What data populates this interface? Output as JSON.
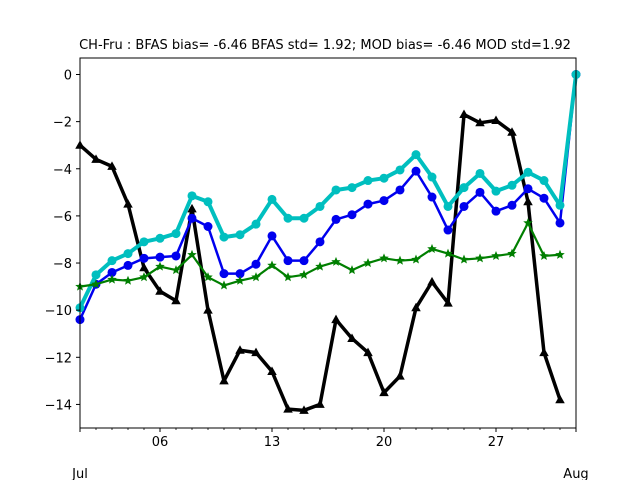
{
  "chart_data": {
    "type": "line",
    "title": "CH-Fru   : BFAS bias= -6.46 BFAS std= 1.92; MOD bias= -6.46 MOD std=1.92",
    "xlabel": "",
    "ylabel": "",
    "x_start_day": 1,
    "x_end_day": 32,
    "ylim": [
      -15,
      0.7
    ],
    "yticks": [
      0,
      -2,
      -4,
      -6,
      -8,
      -10,
      -12,
      -14
    ],
    "ytick_labels": [
      "0",
      "−2",
      "−4",
      "−6",
      "−8",
      "−10",
      "−12",
      "−14"
    ],
    "xticks": [
      6,
      13,
      20,
      27
    ],
    "xtick_labels": [
      "06",
      "13",
      "20",
      "27"
    ],
    "x_month_labels": [
      {
        "day": 1,
        "label": "Jul"
      },
      {
        "day": 32,
        "label": "Aug"
      }
    ],
    "grid": false,
    "series": [
      {
        "color": "#000000",
        "marker": "triangle",
        "x": [
          1,
          2,
          3,
          4,
          5,
          6,
          7,
          8,
          9,
          10,
          11,
          12,
          13,
          14,
          15,
          16,
          17,
          18,
          19,
          20,
          21,
          22,
          23,
          24,
          25,
          26,
          27,
          28,
          29,
          30,
          31
        ],
        "values": [
          -3.0,
          -3.6,
          -3.9,
          -5.5,
          -8.2,
          -9.2,
          -9.6,
          -5.7,
          -10.0,
          -13.0,
          -11.7,
          -11.8,
          -12.6,
          -14.2,
          -14.25,
          -14.0,
          -10.4,
          -11.2,
          -11.8,
          -13.5,
          -12.8,
          -9.9,
          -8.8,
          -9.7,
          -1.7,
          -2.05,
          -1.95,
          -2.45,
          -5.4,
          -11.8,
          -13.8
        ]
      },
      {
        "color": "#0000ee",
        "marker": "circle",
        "x": [
          1,
          2,
          3,
          4,
          5,
          6,
          7,
          8,
          9,
          10,
          11,
          12,
          13,
          14,
          15,
          16,
          17,
          18,
          19,
          20,
          21,
          22,
          23,
          24,
          25,
          26,
          27,
          28,
          29,
          30,
          31,
          32
        ],
        "values": [
          -10.4,
          -8.9,
          -8.4,
          -8.1,
          -7.8,
          -7.75,
          -7.7,
          -6.1,
          -6.45,
          -8.45,
          -8.45,
          -8.05,
          -6.85,
          -7.9,
          -7.9,
          -7.1,
          -6.15,
          -5.95,
          -5.5,
          -5.35,
          -4.9,
          -4.1,
          -5.2,
          -6.6,
          -5.6,
          -5.0,
          -5.8,
          -5.55,
          -4.85,
          -5.25,
          -6.3,
          0.0
        ]
      },
      {
        "color": "#00bfbf",
        "marker": "circle",
        "x": [
          1,
          2,
          3,
          4,
          5,
          6,
          7,
          8,
          9,
          10,
          11,
          12,
          13,
          14,
          15,
          16,
          17,
          18,
          19,
          20,
          21,
          22,
          23,
          24,
          25,
          26,
          27,
          28,
          29,
          30,
          31,
          32
        ],
        "values": [
          -9.9,
          -8.5,
          -7.9,
          -7.6,
          -7.1,
          -6.95,
          -6.75,
          -5.15,
          -5.4,
          -6.9,
          -6.8,
          -6.35,
          -5.3,
          -6.1,
          -6.1,
          -5.6,
          -4.9,
          -4.8,
          -4.5,
          -4.4,
          -4.05,
          -3.4,
          -4.35,
          -5.6,
          -4.8,
          -4.2,
          -4.95,
          -4.7,
          -4.15,
          -4.5,
          -5.55,
          0.0
        ]
      },
      {
        "color": "#007f00",
        "marker": "star",
        "x": [
          1,
          2,
          3,
          4,
          5,
          6,
          7,
          8,
          9,
          10,
          11,
          12,
          13,
          14,
          15,
          16,
          17,
          18,
          19,
          20,
          21,
          22,
          23,
          24,
          25,
          26,
          27,
          28,
          29,
          30,
          31
        ],
        "values": [
          -9.0,
          -8.9,
          -8.7,
          -8.75,
          -8.6,
          -8.15,
          -8.3,
          -7.65,
          -8.6,
          -8.95,
          -8.75,
          -8.6,
          -8.1,
          -8.6,
          -8.5,
          -8.15,
          -7.95,
          -8.3,
          -8.0,
          -7.8,
          -7.9,
          -7.85,
          -7.4,
          -7.6,
          -7.85,
          -7.8,
          -7.7,
          -7.6,
          -6.3,
          -7.7,
          -7.65
        ]
      }
    ]
  }
}
